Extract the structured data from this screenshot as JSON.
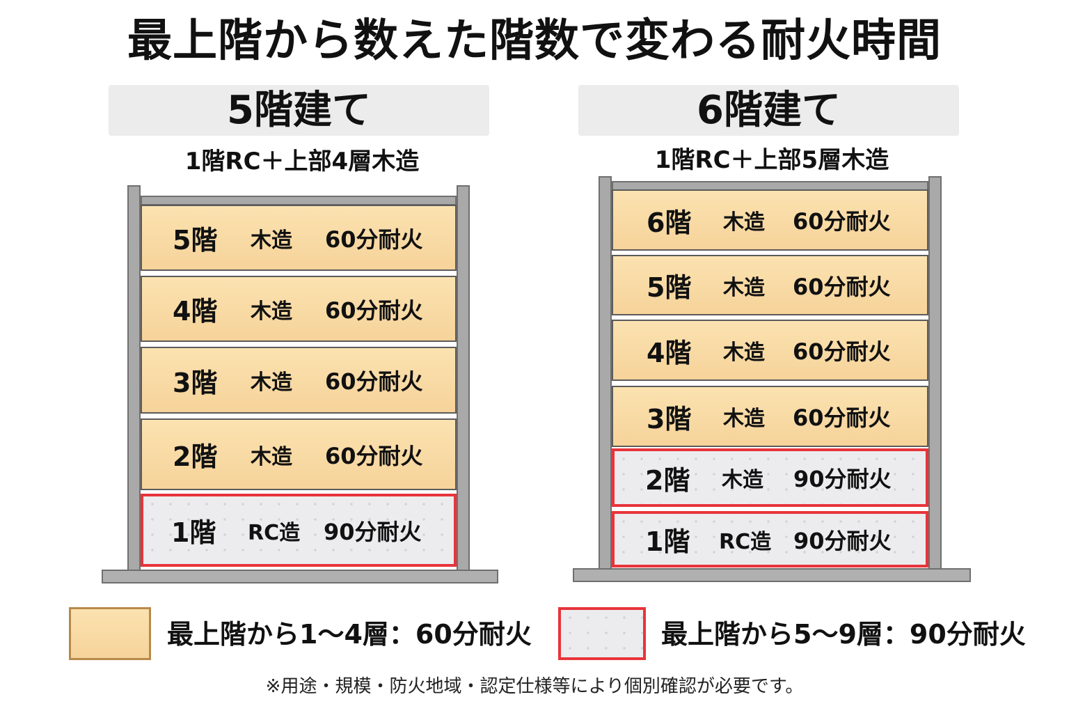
{
  "title": "最上階から数えた階数で変わる耐火時間",
  "panels": [
    {
      "header": "5階建て",
      "subtitle": "1階RC＋上部4層木造",
      "floors": [
        {
          "name": "5階",
          "structure": "木造",
          "rating": "60分耐火",
          "type": "wood"
        },
        {
          "name": "4階",
          "structure": "木造",
          "rating": "60分耐火",
          "type": "wood"
        },
        {
          "name": "3階",
          "structure": "木造",
          "rating": "60分耐火",
          "type": "wood"
        },
        {
          "name": "2階",
          "structure": "木造",
          "rating": "60分耐火",
          "type": "wood"
        },
        {
          "name": "1階",
          "structure": "RC造",
          "rating": "90分耐火",
          "type": "rc"
        }
      ]
    },
    {
      "header": "6階建て",
      "subtitle": "1階RC＋上部5層木造",
      "floors": [
        {
          "name": "6階",
          "structure": "木造",
          "rating": "60分耐火",
          "type": "wood"
        },
        {
          "name": "5階",
          "structure": "木造",
          "rating": "60分耐火",
          "type": "wood"
        },
        {
          "name": "4階",
          "structure": "木造",
          "rating": "60分耐火",
          "type": "wood"
        },
        {
          "name": "3階",
          "structure": "木造",
          "rating": "60分耐火",
          "type": "wood"
        },
        {
          "name": "2階",
          "structure": "木造",
          "rating": "90分耐火",
          "type": "rc"
        },
        {
          "name": "1階",
          "structure": "RC造",
          "rating": "90分耐火",
          "type": "rc"
        }
      ]
    }
  ],
  "legend": {
    "wood_label": "最上階から1～4層：60分耐火",
    "rc_label": "最上階から5～9層：90分耐火"
  },
  "footnote": "※用途・規模・防火地域・認定仕様等により個別確認が必要です。",
  "colors": {
    "wood_fill": "#f6d39a",
    "rc_fill": "#ececee",
    "rc_border": "#e8343b",
    "frame": "#a9a9a9"
  }
}
